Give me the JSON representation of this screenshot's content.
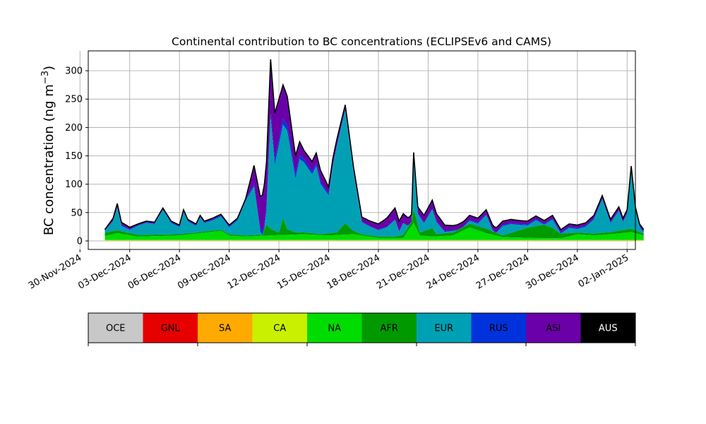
{
  "chart_data": {
    "type": "area",
    "stacked": true,
    "title": "Continental contribution to BC concentrations (ECLIPSEv6 and CAMS)",
    "xlabel": "",
    "ylabel": "BC concentration (ng m",
    "ylabel_superscript": "−3",
    "ylabel_suffix": ")",
    "x_start": "2024-12-01T12:00",
    "x_step_hours": 6,
    "xlim": [
      "2024-11-30T12:00",
      "2025-01-02T12:00"
    ],
    "ylim": [
      -15,
      335
    ],
    "yticks": [
      0,
      50,
      100,
      150,
      200,
      250,
      300
    ],
    "xtick_labels": [
      "30-Nov-2024",
      "03-Dec-2024",
      "06-Dec-2024",
      "09-Dec-2024",
      "12-Dec-2024",
      "15-Dec-2024",
      "18-Dec-2024",
      "21-Dec-2024",
      "24-Dec-2024",
      "27-Dec-2024",
      "30-Dec-2024",
      "02-Jan-2025"
    ],
    "xtick_dates": [
      "2024-11-30",
      "2024-12-03",
      "2024-12-06",
      "2024-12-09",
      "2024-12-12",
      "2024-12-15",
      "2024-12-18",
      "2024-12-21",
      "2024-12-24",
      "2024-12-27",
      "2024-12-30",
      "2025-01-02"
    ],
    "grid": true,
    "legend_placement": "below",
    "total_anchors": [
      [
        "2024-12-01T12:00",
        20
      ],
      [
        "2024-12-02T00:00",
        40
      ],
      [
        "2024-12-02T06:00",
        66
      ],
      [
        "2024-12-02T12:00",
        33
      ],
      [
        "2024-12-03T00:00",
        24
      ],
      [
        "2024-12-03T12:00",
        30
      ],
      [
        "2024-12-04T00:00",
        35
      ],
      [
        "2024-12-04T12:00",
        33
      ],
      [
        "2024-12-05T00:00",
        58
      ],
      [
        "2024-12-05T12:00",
        35
      ],
      [
        "2024-12-06T00:00",
        28
      ],
      [
        "2024-12-06T06:00",
        55
      ],
      [
        "2024-12-06T12:00",
        38
      ],
      [
        "2024-12-07T00:00",
        30
      ],
      [
        "2024-12-07T06:00",
        45
      ],
      [
        "2024-12-07T12:00",
        35
      ],
      [
        "2024-12-08T00:00",
        40
      ],
      [
        "2024-12-08T12:00",
        47
      ],
      [
        "2024-12-09T00:00",
        28
      ],
      [
        "2024-12-09T12:00",
        40
      ],
      [
        "2024-12-10T00:00",
        75
      ],
      [
        "2024-12-10T12:00",
        133
      ],
      [
        "2024-12-11T00:00",
        60
      ],
      [
        "2024-12-11T06:00",
        140
      ],
      [
        "2024-12-11T12:00",
        320
      ],
      [
        "2024-12-11T18:00",
        225
      ],
      [
        "2024-12-12T06:00",
        275
      ],
      [
        "2024-12-12T12:00",
        255
      ],
      [
        "2024-12-13T00:00",
        150
      ],
      [
        "2024-12-13T06:00",
        175
      ],
      [
        "2024-12-13T12:00",
        160
      ],
      [
        "2024-12-14T00:00",
        140
      ],
      [
        "2024-12-14T06:00",
        155
      ],
      [
        "2024-12-14T12:00",
        125
      ],
      [
        "2024-12-15T00:00",
        95
      ],
      [
        "2024-12-15T06:00",
        145
      ],
      [
        "2024-12-15T12:00",
        180
      ],
      [
        "2024-12-16T00:00",
        240
      ],
      [
        "2024-12-16T12:00",
        130
      ],
      [
        "2024-12-17T00:00",
        42
      ],
      [
        "2024-12-17T12:00",
        35
      ],
      [
        "2024-12-18T00:00",
        30
      ],
      [
        "2024-12-18T12:00",
        40
      ],
      [
        "2024-12-19T00:00",
        58
      ],
      [
        "2024-12-19T06:00",
        35
      ],
      [
        "2024-12-19T12:00",
        48
      ],
      [
        "2024-12-20T00:00",
        35
      ],
      [
        "2024-12-20T03:00",
        156
      ],
      [
        "2024-12-20T09:00",
        60
      ],
      [
        "2024-12-20T18:00",
        45
      ],
      [
        "2024-12-21T06:00",
        72
      ],
      [
        "2024-12-21T12:00",
        48
      ],
      [
        "2024-12-22T00:00",
        28
      ],
      [
        "2024-12-22T12:00",
        27
      ],
      [
        "2024-12-23T00:00",
        30
      ],
      [
        "2024-12-23T12:00",
        45
      ],
      [
        "2024-12-24T00:00",
        40
      ],
      [
        "2024-12-24T12:00",
        55
      ],
      [
        "2024-12-25T00:00",
        20
      ],
      [
        "2024-12-25T12:00",
        35
      ],
      [
        "2024-12-26T00:00",
        38
      ],
      [
        "2024-12-26T12:00",
        36
      ],
      [
        "2024-12-27T00:00",
        35
      ],
      [
        "2024-12-27T12:00",
        44
      ],
      [
        "2024-12-28T00:00",
        36
      ],
      [
        "2024-12-28T12:00",
        45
      ],
      [
        "2024-12-29T00:00",
        20
      ],
      [
        "2024-12-29T12:00",
        30
      ],
      [
        "2024-12-30T00:00",
        28
      ],
      [
        "2024-12-30T12:00",
        32
      ],
      [
        "2024-12-31T00:00",
        45
      ],
      [
        "2024-12-31T12:00",
        80
      ],
      [
        "2025-01-01T00:00",
        38
      ],
      [
        "2025-01-01T12:00",
        60
      ],
      [
        "2025-01-01T18:00",
        40
      ],
      [
        "2025-01-02T00:00",
        55
      ],
      [
        "2025-01-02T06:00",
        132
      ],
      [
        "2025-01-02T12:00",
        60
      ],
      [
        "2025-01-02T18:00",
        30
      ],
      [
        "2025-01-03T00:00",
        20
      ]
    ],
    "series": [
      {
        "name": "OCE",
        "color": "#c8c8c8",
        "anchors": [
          [
            "2024-12-01T12:00",
            0.2
          ],
          [
            "2025-01-03T00:00",
            0.2
          ]
        ]
      },
      {
        "name": "GNL",
        "color": "#e60000",
        "anchors": [
          [
            "2024-12-01T12:00",
            0.1
          ],
          [
            "2025-01-03T00:00",
            0.1
          ]
        ]
      },
      {
        "name": "SA",
        "color": "#ffaa00",
        "anchors": [
          [
            "2024-12-01T12:00",
            0.3
          ],
          [
            "2025-01-03T00:00",
            0.3
          ]
        ]
      },
      {
        "name": "CA",
        "color": "#c8f000",
        "anchors": [
          [
            "2024-12-01T12:00",
            1
          ],
          [
            "2025-01-03T00:00",
            1
          ]
        ]
      },
      {
        "name": "NA",
        "color": "#00dc00",
        "anchors": [
          [
            "2024-12-01T12:00",
            7
          ],
          [
            "2024-12-02T06:00",
            12
          ],
          [
            "2024-12-03T12:00",
            6
          ],
          [
            "2024-12-06T00:00",
            8
          ],
          [
            "2024-12-08T12:00",
            16
          ],
          [
            "2024-12-09T00:00",
            8
          ],
          [
            "2024-12-10T00:00",
            6
          ],
          [
            "2024-12-11T12:00",
            8
          ],
          [
            "2024-12-13T12:00",
            10
          ],
          [
            "2024-12-15T00:00",
            8
          ],
          [
            "2024-12-16T12:00",
            10
          ],
          [
            "2024-12-18T00:00",
            4
          ],
          [
            "2024-12-19T12:00",
            4
          ],
          [
            "2024-12-20T03:00",
            30
          ],
          [
            "2024-12-20T12:00",
            8
          ],
          [
            "2024-12-21T06:00",
            6
          ],
          [
            "2024-12-22T12:00",
            8
          ],
          [
            "2024-12-23T12:00",
            22
          ],
          [
            "2024-12-24T12:00",
            12
          ],
          [
            "2024-12-25T12:00",
            5
          ],
          [
            "2024-12-28T00:00",
            3
          ],
          [
            "2024-12-29T00:00",
            3
          ],
          [
            "2024-12-30T00:00",
            10
          ],
          [
            "2024-12-31T00:00",
            8
          ],
          [
            "2025-01-01T00:00",
            10
          ],
          [
            "2025-01-02T06:00",
            14
          ],
          [
            "2025-01-03T00:00",
            8
          ]
        ]
      },
      {
        "name": "AFR",
        "color": "#009a00",
        "anchors": [
          [
            "2024-12-01T12:00",
            6
          ],
          [
            "2024-12-02T06:00",
            5
          ],
          [
            "2024-12-03T12:00",
            3
          ],
          [
            "2024-12-07T00:00",
            2
          ],
          [
            "2024-12-11T00:00",
            2
          ],
          [
            "2024-12-11T06:00",
            20
          ],
          [
            "2024-12-11T12:00",
            12
          ],
          [
            "2024-12-12T00:00",
            4
          ],
          [
            "2024-12-12T06:00",
            30
          ],
          [
            "2024-12-12T12:00",
            10
          ],
          [
            "2024-12-13T00:00",
            4
          ],
          [
            "2024-12-14T12:00",
            2
          ],
          [
            "2024-12-15T12:00",
            5
          ],
          [
            "2024-12-16T00:00",
            20
          ],
          [
            "2024-12-16T12:00",
            6
          ],
          [
            "2024-12-17T00:00",
            2
          ],
          [
            "2024-12-19T00:00",
            2
          ],
          [
            "2024-12-20T00:00",
            8
          ],
          [
            "2024-12-20T03:00",
            25
          ],
          [
            "2024-12-20T12:00",
            5
          ],
          [
            "2024-12-21T06:00",
            15
          ],
          [
            "2024-12-21T12:00",
            4
          ],
          [
            "2024-12-24T12:00",
            8
          ],
          [
            "2024-12-25T12:00",
            3
          ],
          [
            "2024-12-26T00:00",
            8
          ],
          [
            "2024-12-27T00:00",
            18
          ],
          [
            "2024-12-28T00:00",
            24
          ],
          [
            "2024-12-28T12:00",
            18
          ],
          [
            "2024-12-29T00:00",
            8
          ],
          [
            "2024-12-30T00:00",
            3
          ],
          [
            "2025-01-01T00:00",
            4
          ],
          [
            "2025-01-02T06:00",
            6
          ],
          [
            "2025-01-03T00:00",
            3
          ]
        ]
      },
      {
        "name": "EUR",
        "color": "#00a0b4",
        "anchors": [
          [
            "2024-12-01T12:00",
            5
          ],
          [
            "2024-12-02T06:00",
            40
          ],
          [
            "2024-12-02T12:00",
            18
          ],
          [
            "2024-12-03T12:00",
            18
          ],
          [
            "2024-12-05T00:00",
            42
          ],
          [
            "2024-12-06T06:00",
            42
          ],
          [
            "2024-12-08T12:00",
            25
          ],
          [
            "2024-12-09T12:00",
            28
          ],
          [
            "2024-12-10T12:00",
            118
          ],
          [
            "2024-12-11T00:00",
            50
          ],
          [
            "2024-12-11T12:00",
            200
          ],
          [
            "2024-12-12T06:00",
            170
          ],
          [
            "2024-12-13T06:00",
            145
          ],
          [
            "2024-12-14T06:00",
            125
          ],
          [
            "2024-12-15T00:00",
            75
          ],
          [
            "2024-12-16T00:00",
            210
          ],
          [
            "2024-12-16T12:00",
            110
          ],
          [
            "2024-12-17T00:00",
            16
          ],
          [
            "2024-12-18T12:00",
            10
          ],
          [
            "2024-12-19T00:00",
            20
          ],
          [
            "2024-12-20T03:00",
            80
          ],
          [
            "2024-12-20T12:00",
            20
          ],
          [
            "2024-12-21T06:00",
            30
          ],
          [
            "2024-12-22T12:00",
            8
          ],
          [
            "2024-12-23T12:00",
            8
          ],
          [
            "2024-12-24T12:00",
            15
          ],
          [
            "2024-12-25T12:00",
            12
          ],
          [
            "2024-12-27T12:00",
            8
          ],
          [
            "2024-12-28T12:00",
            8
          ],
          [
            "2024-12-29T12:00",
            12
          ],
          [
            "2024-12-31T12:00",
            58
          ],
          [
            "2025-01-01T00:00",
            18
          ],
          [
            "2025-01-02T06:00",
            95
          ],
          [
            "2025-01-02T18:00",
            10
          ],
          [
            "2025-01-03T00:00",
            8
          ]
        ]
      },
      {
        "name": "RUS",
        "color": "#0032dc",
        "anchors": [
          [
            "2024-12-01T12:00",
            1
          ],
          [
            "2024-12-10T00:00",
            2
          ],
          [
            "2024-12-11T12:00",
            8
          ],
          [
            "2024-12-12T12:00",
            10
          ],
          [
            "2024-12-13T12:00",
            6
          ],
          [
            "2024-12-15T00:00",
            3
          ],
          [
            "2024-12-16T00:00",
            2
          ],
          [
            "2024-12-17T00:00",
            1
          ],
          [
            "2024-12-29T00:00",
            2
          ],
          [
            "2024-12-31T12:00",
            2
          ],
          [
            "2025-01-03T00:00",
            1
          ]
        ]
      },
      {
        "name": "ASI",
        "color": "#6a00a8",
        "anchors": [
          [
            "2024-12-01T12:00",
            1
          ],
          [
            "2024-12-02T06:00",
            6
          ],
          [
            "2024-12-03T12:00",
            2
          ],
          [
            "2024-12-10T00:00",
            2
          ],
          [
            "2024-12-11T12:00",
            95
          ],
          [
            "2024-12-12T06:00",
            60
          ],
          [
            "2024-12-13T12:00",
            15
          ],
          [
            "2024-12-14T12:00",
            20
          ],
          [
            "2024-12-15T00:00",
            12
          ],
          [
            "2024-12-16T00:00",
            8
          ],
          [
            "2024-12-17T00:00",
            8
          ],
          [
            "2024-12-18T00:00",
            10
          ],
          [
            "2024-12-19T00:00",
            20
          ],
          [
            "2024-12-20T03:00",
            10
          ],
          [
            "2024-12-21T06:00",
            15
          ],
          [
            "2024-12-22T12:00",
            8
          ],
          [
            "2024-12-24T12:00",
            8
          ],
          [
            "2024-12-26T12:00",
            6
          ],
          [
            "2024-12-29T12:00",
            5
          ],
          [
            "2024-12-31T12:00",
            5
          ],
          [
            "2025-01-02T06:00",
            6
          ],
          [
            "2025-01-03T00:00",
            4
          ]
        ]
      },
      {
        "name": "AUS",
        "color": "#000000",
        "anchors": [
          [
            "2024-12-01T12:00",
            0
          ],
          [
            "2025-01-03T00:00",
            0
          ]
        ]
      }
    ]
  }
}
